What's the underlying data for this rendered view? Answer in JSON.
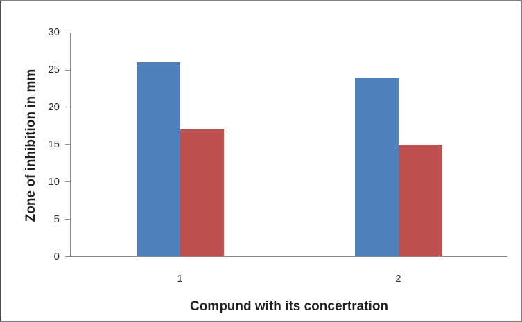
{
  "window": {
    "background": "#ffffff",
    "border_color": "#7f7f7f"
  },
  "chart_data": {
    "type": "bar",
    "title": "",
    "xlabel": "Compund with its concertration",
    "ylabel": "Zone of inhibition in mm",
    "categories": [
      "1",
      "2"
    ],
    "series": [
      {
        "name": "series-blue",
        "color": "#4F81BD",
        "values": [
          26,
          24
        ]
      },
      {
        "name": "series-red",
        "color": "#C0504D",
        "values": [
          17,
          15
        ]
      }
    ],
    "ylim": [
      0,
      30
    ],
    "yticks": [
      0,
      5,
      10,
      15,
      20,
      25,
      30
    ],
    "grid": false,
    "legend": "none",
    "axis_color": "#8a8a8a",
    "tick_label_color": "#2e2e2e",
    "title_color": "#1f1f1f"
  }
}
